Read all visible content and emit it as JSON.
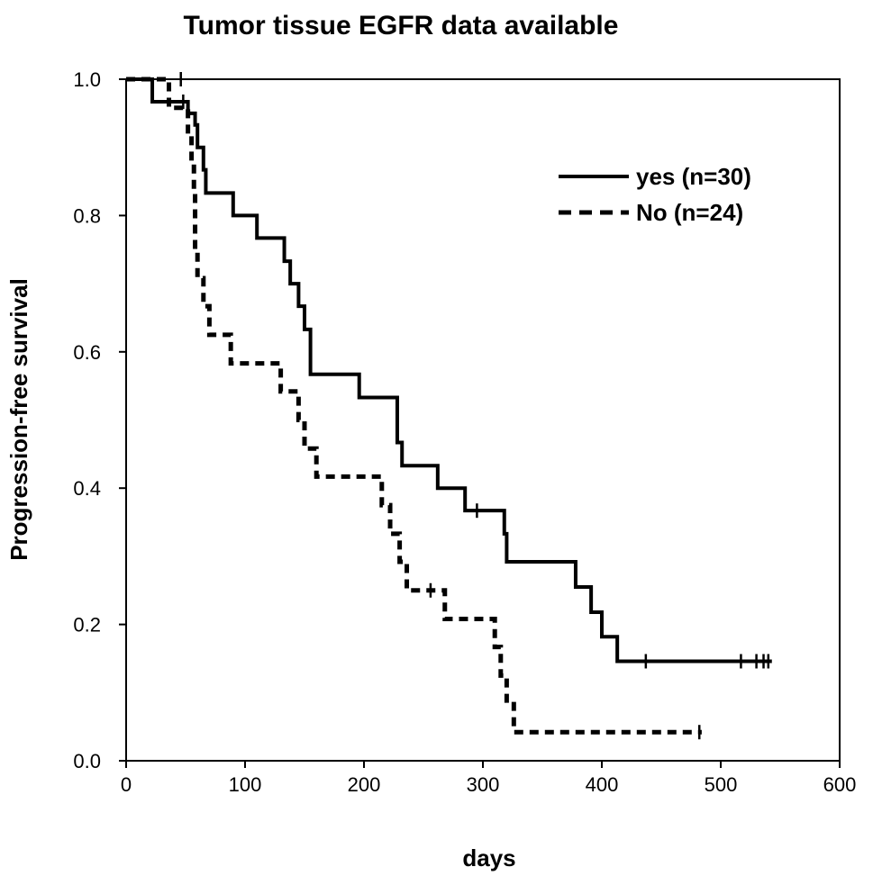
{
  "chart_data": {
    "type": "line",
    "title": "Tumor tissue EGFR  data available",
    "xlabel": "days",
    "ylabel": "Progression-free survival",
    "xlim": [
      0,
      600
    ],
    "ylim": [
      0,
      1.0
    ],
    "xticks": [
      "0",
      "100",
      "200",
      "300",
      "400",
      "500",
      "600"
    ],
    "yticks": [
      "0.0",
      "0.2",
      "0.4",
      "0.6",
      "0.8",
      "1.0"
    ],
    "legend_position": "top-right",
    "grid": false,
    "series": [
      {
        "name": "yes (n=30)",
        "style": "solid",
        "color": "#000000",
        "steps": [
          [
            0,
            1.0
          ],
          [
            22,
            0.967
          ],
          [
            42,
            0.967
          ],
          [
            52,
            0.95
          ],
          [
            58,
            0.933
          ],
          [
            60,
            0.9
          ],
          [
            65,
            0.867
          ],
          [
            67,
            0.833
          ],
          [
            90,
            0.8
          ],
          [
            110,
            0.767
          ],
          [
            133,
            0.733
          ],
          [
            138,
            0.7
          ],
          [
            145,
            0.667
          ],
          [
            150,
            0.633
          ],
          [
            155,
            0.567
          ],
          [
            196,
            0.533
          ],
          [
            228,
            0.467
          ],
          [
            232,
            0.433
          ],
          [
            262,
            0.4
          ],
          [
            285,
            0.367
          ],
          [
            318,
            0.333
          ],
          [
            320,
            0.292
          ],
          [
            378,
            0.255
          ],
          [
            391,
            0.218
          ],
          [
            400,
            0.182
          ],
          [
            413,
            0.146
          ],
          [
            543,
            0.146
          ]
        ],
        "censored": [
          [
            48,
            0.967
          ],
          [
            295,
            0.367
          ],
          [
            437,
            0.146
          ],
          [
            517,
            0.146
          ],
          [
            530,
            0.146
          ],
          [
            536,
            0.146
          ],
          [
            540,
            0.146
          ]
        ]
      },
      {
        "name": "No (n=24)",
        "style": "dashed",
        "color": "#000000",
        "steps": [
          [
            0,
            1.0
          ],
          [
            36,
            0.958
          ],
          [
            52,
            0.917
          ],
          [
            55,
            0.875
          ],
          [
            57,
            0.833
          ],
          [
            58,
            0.75
          ],
          [
            60,
            0.708
          ],
          [
            65,
            0.667
          ],
          [
            70,
            0.625
          ],
          [
            88,
            0.583
          ],
          [
            130,
            0.542
          ],
          [
            145,
            0.5
          ],
          [
            150,
            0.458
          ],
          [
            160,
            0.417
          ],
          [
            215,
            0.375
          ],
          [
            222,
            0.333
          ],
          [
            230,
            0.292
          ],
          [
            236,
            0.25
          ],
          [
            268,
            0.208
          ],
          [
            310,
            0.167
          ],
          [
            315,
            0.125
          ],
          [
            320,
            0.083
          ],
          [
            326,
            0.042
          ],
          [
            484,
            0.042
          ]
        ],
        "censored": [
          [
            46,
            1.0
          ],
          [
            256,
            0.25
          ],
          [
            482,
            0.042
          ]
        ]
      }
    ]
  }
}
